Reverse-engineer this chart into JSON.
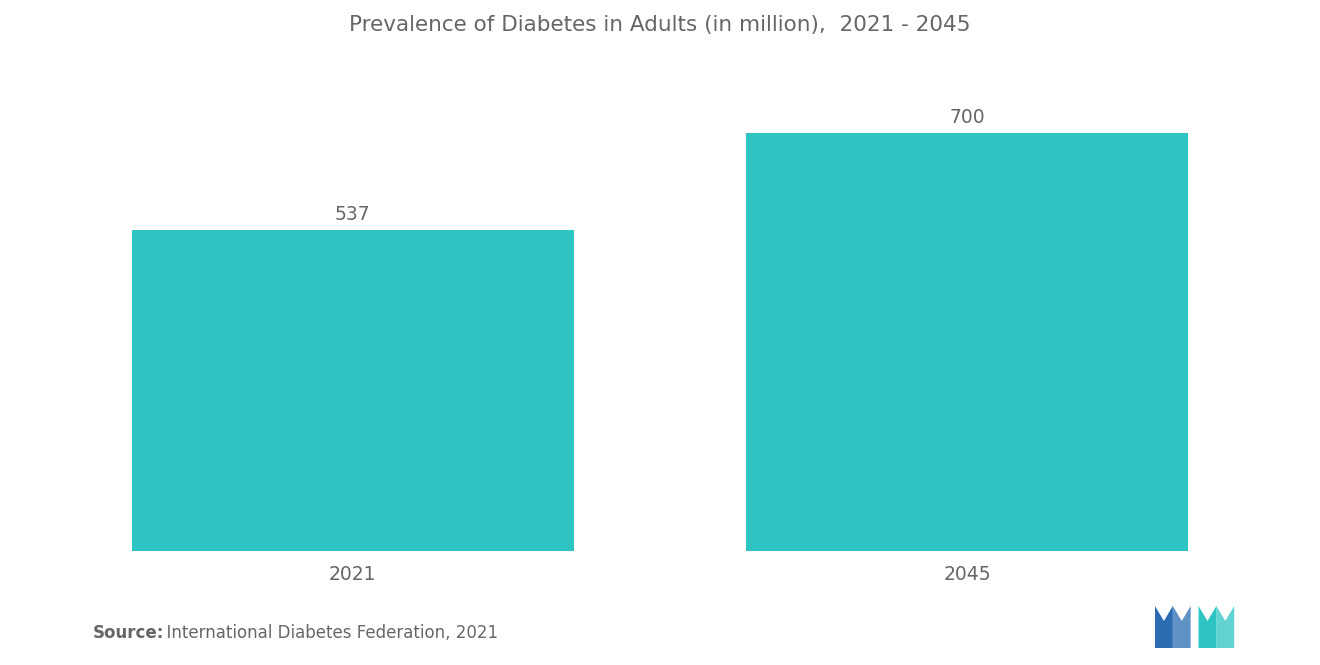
{
  "title": "Prevalence of Diabetes in Adults (in million),  2021 - 2045",
  "categories": [
    "2021",
    "2045"
  ],
  "values": [
    537,
    700
  ],
  "bar_color": "#2EC4C4",
  "label_color": "#666666",
  "background_color": "#ffffff",
  "source_bold": "Source:",
  "source_rest": "  International Diabetes Federation, 2021",
  "title_fontsize": 15.5,
  "label_fontsize": 13.5,
  "tick_fontsize": 13.5,
  "source_fontsize": 12,
  "bar_width": 0.72,
  "xlim": [
    -0.55,
    1.55
  ],
  "ylim": [
    0,
    820
  ]
}
